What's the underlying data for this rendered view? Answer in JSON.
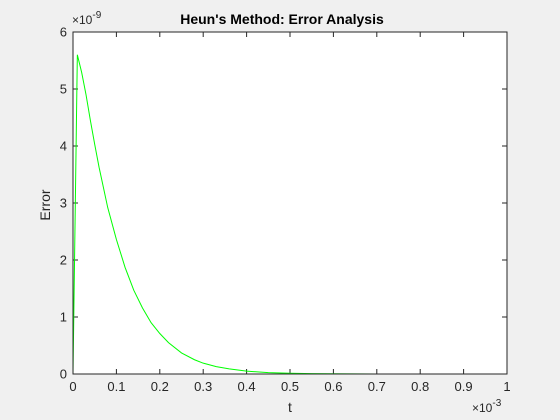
{
  "chart_data": {
    "type": "line",
    "title": "Heun's Method: Error Analysis",
    "xlabel": "t",
    "ylabel": "Error",
    "xlim": [
      0,
      0.001
    ],
    "ylim": [
      0,
      6e-09
    ],
    "x_multiplier_label": "×10",
    "x_multiplier_exponent": "-3",
    "y_multiplier_label": "×10",
    "y_multiplier_exponent": "-9",
    "x_tick_labels": [
      "0",
      "0.1",
      "0.2",
      "0.3",
      "0.4",
      "0.5",
      "0.6",
      "0.7",
      "0.8",
      "0.9",
      "1"
    ],
    "x_tick_values": [
      0,
      0.0001,
      0.0002,
      0.0003,
      0.0004,
      0.0005,
      0.0006,
      0.0007,
      0.0008,
      0.0009,
      0.001
    ],
    "y_tick_labels": [
      "0",
      "1",
      "2",
      "3",
      "4",
      "5",
      "6"
    ],
    "y_tick_values": [
      0,
      1e-09,
      2e-09,
      3e-09,
      4e-09,
      5e-09,
      6e-09
    ],
    "grid": false,
    "line_color": "#00ff00",
    "series": [
      {
        "x": [
          0,
          1e-05,
          2e-05,
          3e-05,
          4e-05,
          5e-05,
          6e-05,
          8e-05,
          0.0001,
          0.00012,
          0.00014,
          0.00016,
          0.00018,
          0.0002,
          0.00022,
          0.00025,
          0.00028,
          0.0003,
          0.00033,
          0.00036,
          0.0004,
          0.00045,
          0.0005,
          0.00055,
          0.0006,
          0.00065,
          0.0007,
          0.0008,
          0.0009,
          0.001
        ],
        "y": [
          0,
          5.6e-09,
          5.29e-09,
          4.9e-09,
          4.45e-09,
          4.03e-09,
          3.63e-09,
          2.92e-09,
          2.36e-09,
          1.87e-09,
          1.47e-09,
          1.16e-09,
          9e-10,
          7.1e-10,
          5.5e-10,
          3.7e-10,
          2.5e-10,
          1.9e-10,
          1.3e-10,
          9e-11,
          5e-11,
          2.5e-11,
          1.3e-11,
          7e-12,
          4e-12,
          2e-12,
          1e-12,
          3e-13,
          1e-13,
          0
        ]
      }
    ]
  }
}
